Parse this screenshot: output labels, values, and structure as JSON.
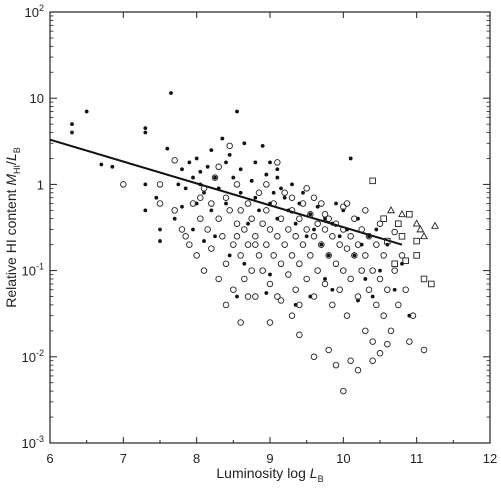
{
  "chart_data": {
    "type": "scatter",
    "title": "",
    "xlabel": {
      "main": "Luminosity  log ",
      "var": "L",
      "sub": "B"
    },
    "ylabel": {
      "main": "Relative HI content  ",
      "var1": "M",
      "sub1": "HI",
      "slash": "/",
      "var2": "L",
      "sub2": "B"
    },
    "xlim": [
      6,
      12
    ],
    "ylim": [
      0.001,
      100
    ],
    "yscale": "log",
    "grid": false,
    "x_ticks": [
      6,
      7,
      8,
      9,
      10,
      11,
      12
    ],
    "y_ticks": [
      {
        "value": 0.001,
        "base": "10",
        "exp": "-3"
      },
      {
        "value": 0.01,
        "base": "10",
        "exp": "-2"
      },
      {
        "value": 0.1,
        "base": "10",
        "exp": "-1"
      },
      {
        "value": 1,
        "base": "1",
        "exp": ""
      },
      {
        "value": 10,
        "base": "10",
        "exp": ""
      },
      {
        "value": 100,
        "base": "10",
        "exp": "2"
      }
    ],
    "series": [
      {
        "marker": "filled-circle",
        "points": [
          [
            6.3,
            5.0
          ],
          [
            6.3,
            4.0
          ],
          [
            6.5,
            7.0
          ],
          [
            6.7,
            1.7
          ],
          [
            6.85,
            1.6
          ],
          [
            7.3,
            4.5
          ],
          [
            7.3,
            4.0
          ],
          [
            7.3,
            1.0
          ],
          [
            7.3,
            0.5
          ],
          [
            7.45,
            0.7
          ],
          [
            7.5,
            0.3
          ],
          [
            7.5,
            0.22
          ],
          [
            7.6,
            2.6
          ],
          [
            7.65,
            11.5
          ],
          [
            7.7,
            0.4
          ],
          [
            7.75,
            1.0
          ],
          [
            7.8,
            1.5
          ],
          [
            7.8,
            0.55
          ],
          [
            7.85,
            0.9
          ],
          [
            7.9,
            1.8
          ],
          [
            7.95,
            1.2
          ],
          [
            8.0,
            2.0
          ],
          [
            8.0,
            0.6
          ],
          [
            8.05,
            1.4
          ],
          [
            8.05,
            1.0
          ],
          [
            8.1,
            0.8
          ],
          [
            8.15,
            1.6
          ],
          [
            8.2,
            2.5
          ],
          [
            8.2,
            0.5
          ],
          [
            8.25,
            1.2
          ],
          [
            8.3,
            0.9
          ],
          [
            8.35,
            3.4
          ],
          [
            8.4,
            1.8
          ],
          [
            8.4,
            0.6
          ],
          [
            8.45,
            2.2
          ],
          [
            8.5,
            1.2
          ],
          [
            8.55,
            7.0
          ],
          [
            8.6,
            0.8
          ],
          [
            8.6,
            1.5
          ],
          [
            8.65,
            3.0
          ],
          [
            8.7,
            0.35
          ],
          [
            8.75,
            1.1
          ],
          [
            8.8,
            1.8
          ],
          [
            8.8,
            0.7
          ],
          [
            8.85,
            0.5
          ],
          [
            8.9,
            2.8
          ],
          [
            8.95,
            1.3
          ],
          [
            9.0,
            0.6
          ],
          [
            9.0,
            1.8
          ],
          [
            9.05,
            0.8
          ],
          [
            9.1,
            1.2
          ],
          [
            9.1,
            0.4
          ],
          [
            9.15,
            0.9
          ],
          [
            9.2,
            0.7
          ],
          [
            9.25,
            0.5
          ],
          [
            9.3,
            1.0
          ],
          [
            9.35,
            0.35
          ],
          [
            9.4,
            0.6
          ],
          [
            9.45,
            0.8
          ],
          [
            9.5,
            0.25
          ],
          [
            9.55,
            0.45
          ],
          [
            9.6,
            0.3
          ],
          [
            9.65,
            0.55
          ],
          [
            9.7,
            0.2
          ],
          [
            9.75,
            0.4
          ],
          [
            9.8,
            0.15
          ],
          [
            9.85,
            0.35
          ],
          [
            9.9,
            0.6
          ],
          [
            9.95,
            0.25
          ],
          [
            10.0,
            0.5
          ],
          [
            10.05,
            0.3
          ],
          [
            10.1,
            2.0
          ],
          [
            10.15,
            0.15
          ],
          [
            10.2,
            0.4
          ],
          [
            10.25,
            0.2
          ],
          [
            10.3,
            0.08
          ],
          [
            10.35,
            0.25
          ],
          [
            10.4,
            0.05
          ],
          [
            10.45,
            0.3
          ],
          [
            10.5,
            0.1
          ],
          [
            10.6,
            0.2
          ],
          [
            10.7,
            0.06
          ],
          [
            10.8,
            0.12
          ],
          [
            10.9,
            0.03
          ],
          [
            8.55,
            0.05
          ],
          [
            8.95,
            0.055
          ],
          [
            9.55,
            0.05
          ],
          [
            9.1,
            1.5
          ],
          [
            8.25,
            0.25
          ],
          [
            7.95,
            0.3
          ],
          [
            8.65,
            0.12
          ],
          [
            9.35,
            0.04
          ],
          [
            9.0,
            0.09
          ],
          [
            8.1,
            0.22
          ],
          [
            8.45,
            0.15
          ],
          [
            9.75,
            0.08
          ],
          [
            10.2,
            0.045
          ],
          [
            9.85,
            0.06
          ]
        ]
      },
      {
        "marker": "open-circle",
        "points": [
          [
            7.0,
            1.0
          ],
          [
            7.5,
            1.0
          ],
          [
            7.7,
            0.5
          ],
          [
            7.8,
            0.3
          ],
          [
            7.9,
            0.2
          ],
          [
            7.95,
            0.6
          ],
          [
            8.0,
            0.15
          ],
          [
            8.05,
            0.4
          ],
          [
            8.1,
            0.9
          ],
          [
            8.1,
            0.1
          ],
          [
            8.15,
            0.3
          ],
          [
            8.2,
            0.6
          ],
          [
            8.2,
            0.18
          ],
          [
            8.25,
            1.2
          ],
          [
            8.3,
            0.4
          ],
          [
            8.3,
            0.08
          ],
          [
            8.35,
            0.25
          ],
          [
            8.4,
            0.7
          ],
          [
            8.4,
            0.12
          ],
          [
            8.45,
            0.5
          ],
          [
            8.5,
            0.2
          ],
          [
            8.5,
            0.06
          ],
          [
            8.55,
            0.35
          ],
          [
            8.55,
            1.0
          ],
          [
            8.6,
            0.15
          ],
          [
            8.6,
            0.5
          ],
          [
            8.65,
            0.08
          ],
          [
            8.65,
            0.3
          ],
          [
            8.7,
            0.6
          ],
          [
            8.7,
            0.2
          ],
          [
            8.75,
            0.1
          ],
          [
            8.75,
            0.4
          ],
          [
            8.8,
            0.25
          ],
          [
            8.8,
            0.05
          ],
          [
            8.85,
            0.15
          ],
          [
            8.85,
            0.8
          ],
          [
            8.9,
            0.35
          ],
          [
            8.9,
            0.1
          ],
          [
            8.95,
            0.2
          ],
          [
            8.95,
            0.5
          ],
          [
            9.0,
            0.3
          ],
          [
            9.0,
            0.07
          ],
          [
            9.05,
            0.15
          ],
          [
            9.05,
            0.6
          ],
          [
            9.1,
            0.25
          ],
          [
            9.1,
            0.05
          ],
          [
            9.15,
            0.4
          ],
          [
            9.15,
            0.12
          ],
          [
            9.2,
            0.2
          ],
          [
            9.2,
            0.8
          ],
          [
            9.25,
            0.3
          ],
          [
            9.25,
            0.09
          ],
          [
            9.3,
            0.5
          ],
          [
            9.3,
            0.15
          ],
          [
            9.35,
            0.25
          ],
          [
            9.35,
            0.06
          ],
          [
            9.4,
            0.4
          ],
          [
            9.4,
            0.12
          ],
          [
            9.45,
            0.2
          ],
          [
            9.45,
            0.6
          ],
          [
            9.5,
            0.3
          ],
          [
            9.5,
            0.08
          ],
          [
            9.55,
            0.15
          ],
          [
            9.55,
            0.45
          ],
          [
            9.6,
            0.25
          ],
          [
            9.6,
            0.05
          ],
          [
            9.65,
            0.35
          ],
          [
            9.65,
            0.1
          ],
          [
            9.7,
            0.2
          ],
          [
            9.7,
            0.6
          ],
          [
            9.75,
            0.3
          ],
          [
            9.75,
            0.07
          ],
          [
            9.8,
            0.15
          ],
          [
            9.8,
            0.4
          ],
          [
            9.85,
            0.25
          ],
          [
            9.85,
            0.04
          ],
          [
            9.9,
            0.12
          ],
          [
            9.9,
            0.35
          ],
          [
            9.95,
            0.2
          ],
          [
            9.95,
            0.06
          ],
          [
            10.0,
            0.3
          ],
          [
            10.0,
            0.1
          ],
          [
            10.05,
            0.18
          ],
          [
            10.05,
            0.03
          ],
          [
            10.1,
            0.25
          ],
          [
            10.1,
            0.08
          ],
          [
            10.15,
            0.4
          ],
          [
            10.15,
            0.15
          ],
          [
            10.2,
            0.05
          ],
          [
            10.2,
            0.2
          ],
          [
            10.25,
            0.1
          ],
          [
            10.25,
            0.3
          ],
          [
            10.3,
            0.02
          ],
          [
            10.3,
            0.15
          ],
          [
            10.35,
            0.06
          ],
          [
            10.35,
            0.25
          ],
          [
            10.4,
            0.1
          ],
          [
            10.4,
            0.015
          ],
          [
            10.45,
            0.04
          ],
          [
            10.45,
            0.2
          ],
          [
            10.5,
            0.08
          ],
          [
            10.55,
            0.03
          ],
          [
            10.55,
            0.15
          ],
          [
            10.6,
            0.06
          ],
          [
            10.65,
            0.02
          ],
          [
            10.7,
            0.1
          ],
          [
            10.75,
            0.04
          ],
          [
            10.8,
            0.15
          ],
          [
            10.85,
            0.06
          ],
          [
            10.9,
            0.015
          ],
          [
            10.95,
            0.03
          ],
          [
            11.1,
            0.012
          ],
          [
            10.0,
            0.004
          ],
          [
            9.6,
            0.01
          ],
          [
            9.9,
            0.008
          ],
          [
            10.1,
            0.009
          ],
          [
            10.5,
            0.011
          ],
          [
            9.4,
            0.018
          ],
          [
            10.2,
            0.007
          ],
          [
            10.6,
            0.014
          ],
          [
            10.4,
            0.009
          ],
          [
            9.8,
            0.012
          ],
          [
            8.8,
            0.2
          ],
          [
            8.55,
            0.25
          ],
          [
            8.45,
            2.8
          ],
          [
            8.3,
            1.6
          ],
          [
            8.05,
            0.7
          ],
          [
            7.85,
            0.25
          ],
          [
            7.7,
            1.9
          ],
          [
            7.5,
            0.6
          ],
          [
            9.3,
            0.7
          ],
          [
            9.5,
            0.9
          ],
          [
            9.1,
            1.8
          ],
          [
            8.95,
            1.0
          ],
          [
            9.6,
            0.7
          ],
          [
            9.4,
            0.04
          ],
          [
            9.0,
            0.025
          ],
          [
            9.3,
            0.03
          ],
          [
            10.05,
            0.6
          ],
          [
            10.3,
            0.5
          ],
          [
            10.5,
            0.35
          ],
          [
            10.7,
            0.28
          ],
          [
            9.75,
            0.45
          ],
          [
            10.0,
            0.55
          ],
          [
            8.7,
            0.05
          ],
          [
            9.15,
            0.045
          ],
          [
            8.4,
            0.04
          ],
          [
            8.6,
            0.025
          ]
        ]
      },
      {
        "marker": "open-square",
        "points": [
          [
            10.4,
            1.1
          ],
          [
            10.55,
            0.4
          ],
          [
            10.6,
            0.22
          ],
          [
            10.7,
            0.12
          ],
          [
            10.8,
            0.25
          ],
          [
            10.85,
            0.13
          ],
          [
            10.9,
            0.45
          ],
          [
            11.0,
            0.15
          ],
          [
            11.1,
            0.08
          ],
          [
            11.2,
            0.07
          ],
          [
            10.75,
            0.35
          ],
          [
            11.0,
            0.22
          ]
        ]
      },
      {
        "marker": "open-triangle",
        "points": [
          [
            10.65,
            0.5
          ],
          [
            10.8,
            0.45
          ],
          [
            11.0,
            0.35
          ],
          [
            11.05,
            0.3
          ],
          [
            11.1,
            0.25
          ],
          [
            11.25,
            0.33
          ]
        ]
      }
    ],
    "fit_line": {
      "x": [
        6.0,
        10.8
      ],
      "y": [
        3.3,
        0.2
      ]
    }
  }
}
